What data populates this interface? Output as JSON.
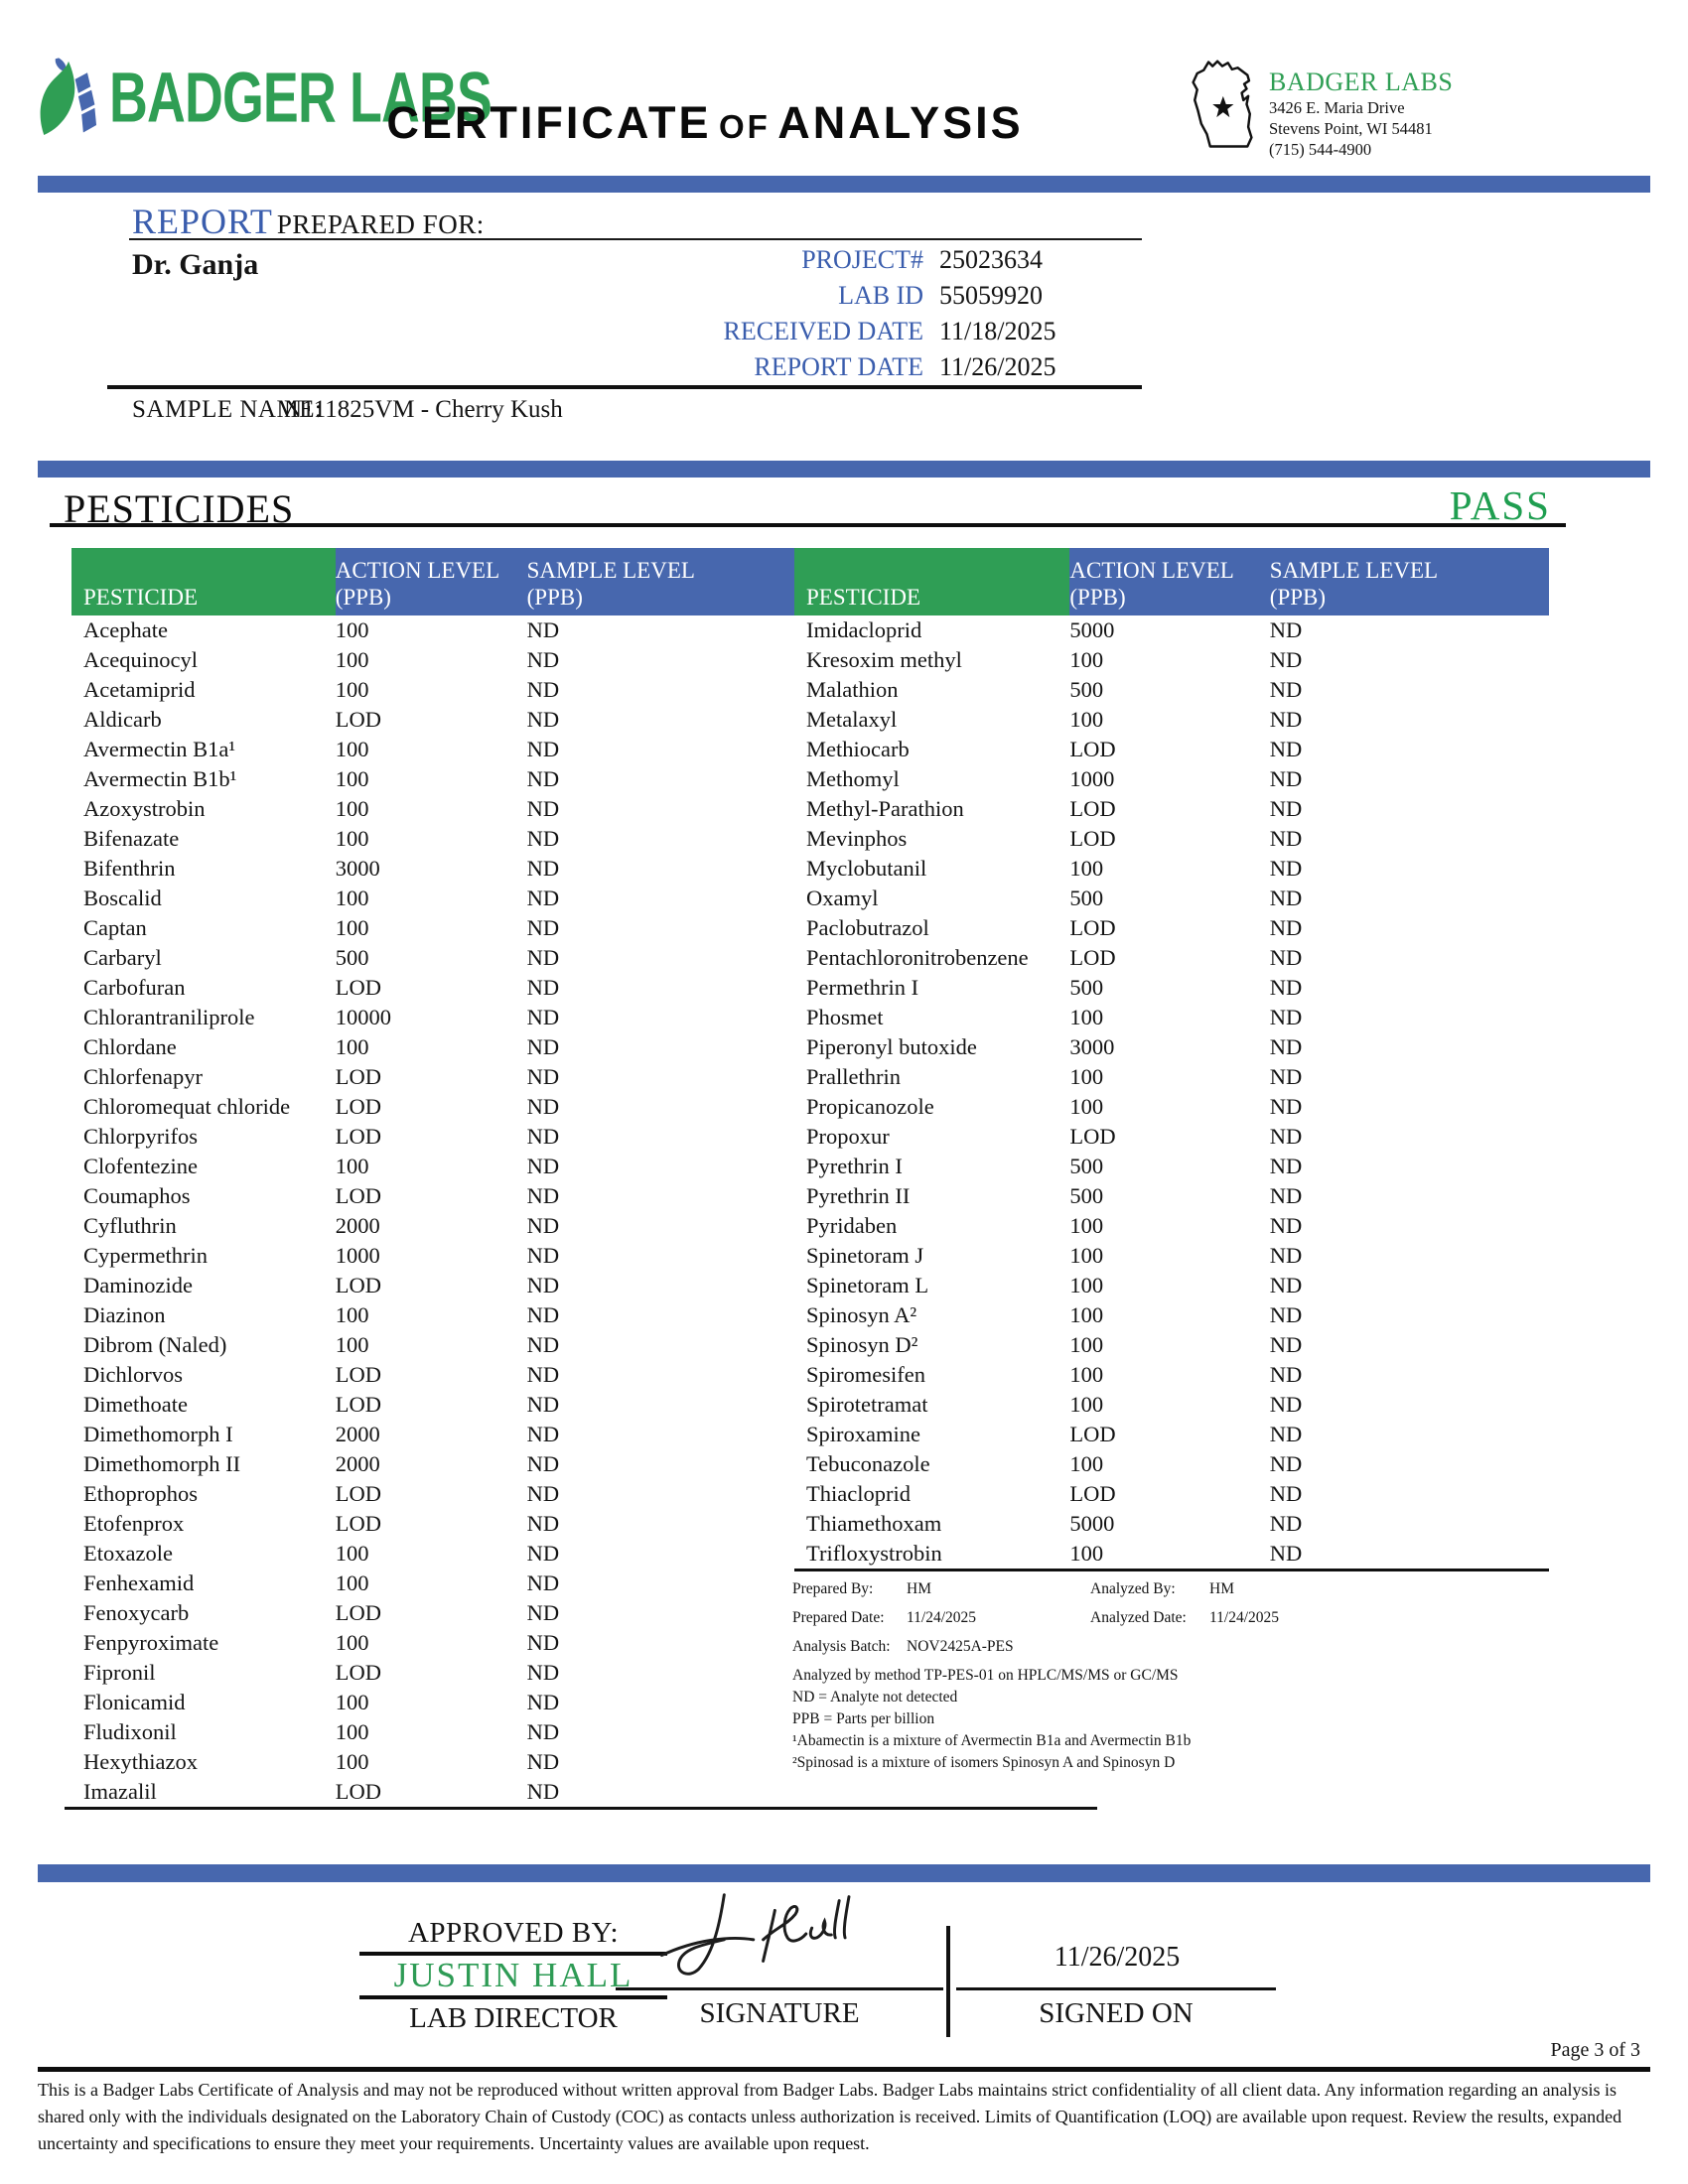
{
  "header": {
    "logo_text": "BADGER LABS",
    "title": {
      "word1": "CERTIFICATE",
      "word2": "OF",
      "word3": "ANALYSIS"
    },
    "lab_info": {
      "name": "BADGER LABS",
      "address_line1": "3426 E. Maria Drive",
      "address_line2": "Stevens Point, WI 54481",
      "phone": "(715) 544-4900"
    }
  },
  "report": {
    "report_label": "REPORT",
    "prepared_for_label": "PREPARED FOR:",
    "client": "Dr. Ganja",
    "fields": [
      {
        "label": "PROJECT#",
        "value": "25023634"
      },
      {
        "label": "LAB ID",
        "value": "55059920"
      },
      {
        "label": "RECEIVED DATE",
        "value": "11/18/2025"
      },
      {
        "label": "REPORT DATE",
        "value": "11/26/2025"
      }
    ],
    "sample_name_label": "SAMPLE NAME:",
    "sample_name": "N111825VM - Cherry Kush"
  },
  "section": {
    "title": "PESTICIDES",
    "result": "PASS"
  },
  "table": {
    "headers": {
      "pesticide": "PESTICIDE",
      "action": "ACTION LEVEL",
      "sample": "SAMPLE LEVEL",
      "unit": "(PPB)"
    },
    "left_rows": [
      {
        "name": "Acephate",
        "action": "100",
        "sample": "ND"
      },
      {
        "name": "Acequinocyl",
        "action": "100",
        "sample": "ND"
      },
      {
        "name": "Acetamiprid",
        "action": "100",
        "sample": "ND"
      },
      {
        "name": "Aldicarb",
        "action": "LOD",
        "sample": "ND"
      },
      {
        "name": "Avermectin B1a¹",
        "action": "100",
        "sample": "ND"
      },
      {
        "name": "Avermectin B1b¹",
        "action": "100",
        "sample": "ND"
      },
      {
        "name": "Azoxystrobin",
        "action": "100",
        "sample": "ND"
      },
      {
        "name": "Bifenazate",
        "action": "100",
        "sample": "ND"
      },
      {
        "name": "Bifenthrin",
        "action": "3000",
        "sample": "ND"
      },
      {
        "name": "Boscalid",
        "action": "100",
        "sample": "ND"
      },
      {
        "name": "Captan",
        "action": "100",
        "sample": "ND"
      },
      {
        "name": "Carbaryl",
        "action": "500",
        "sample": "ND"
      },
      {
        "name": "Carbofuran",
        "action": "LOD",
        "sample": "ND"
      },
      {
        "name": "Chlorantraniliprole",
        "action": "10000",
        "sample": "ND"
      },
      {
        "name": "Chlordane",
        "action": "100",
        "sample": "ND"
      },
      {
        "name": "Chlorfenapyr",
        "action": "LOD",
        "sample": "ND"
      },
      {
        "name": "Chloromequat chloride",
        "action": "LOD",
        "sample": "ND"
      },
      {
        "name": "Chlorpyrifos",
        "action": "LOD",
        "sample": "ND"
      },
      {
        "name": "Clofentezine",
        "action": "100",
        "sample": "ND"
      },
      {
        "name": "Coumaphos",
        "action": "LOD",
        "sample": "ND"
      },
      {
        "name": "Cyfluthrin",
        "action": "2000",
        "sample": "ND"
      },
      {
        "name": "Cypermethrin",
        "action": "1000",
        "sample": "ND"
      },
      {
        "name": "Daminozide",
        "action": "LOD",
        "sample": "ND"
      },
      {
        "name": "Diazinon",
        "action": "100",
        "sample": "ND"
      },
      {
        "name": "Dibrom (Naled)",
        "action": "100",
        "sample": "ND"
      },
      {
        "name": "Dichlorvos",
        "action": "LOD",
        "sample": "ND"
      },
      {
        "name": "Dimethoate",
        "action": "LOD",
        "sample": "ND"
      },
      {
        "name": "Dimethomorph I",
        "action": "2000",
        "sample": "ND"
      },
      {
        "name": "Dimethomorph II",
        "action": "2000",
        "sample": "ND"
      },
      {
        "name": "Ethoprophos",
        "action": "LOD",
        "sample": "ND"
      },
      {
        "name": "Etofenprox",
        "action": "LOD",
        "sample": "ND"
      },
      {
        "name": "Etoxazole",
        "action": "100",
        "sample": "ND"
      },
      {
        "name": "Fenhexamid",
        "action": "100",
        "sample": "ND"
      },
      {
        "name": "Fenoxycarb",
        "action": "LOD",
        "sample": "ND"
      },
      {
        "name": "Fenpyroximate",
        "action": "100",
        "sample": "ND"
      },
      {
        "name": "Fipronil",
        "action": "LOD",
        "sample": "ND"
      },
      {
        "name": "Flonicamid",
        "action": "100",
        "sample": "ND"
      },
      {
        "name": "Fludixonil",
        "action": "100",
        "sample": "ND"
      },
      {
        "name": "Hexythiazox",
        "action": "100",
        "sample": "ND"
      },
      {
        "name": "Imazalil",
        "action": "LOD",
        "sample": "ND"
      }
    ],
    "right_rows": [
      {
        "name": "Imidacloprid",
        "action": "5000",
        "sample": "ND"
      },
      {
        "name": "Kresoxim methyl",
        "action": "100",
        "sample": "ND"
      },
      {
        "name": "Malathion",
        "action": "500",
        "sample": "ND"
      },
      {
        "name": "Metalaxyl",
        "action": "100",
        "sample": "ND"
      },
      {
        "name": "Methiocarb",
        "action": "LOD",
        "sample": "ND"
      },
      {
        "name": "Methomyl",
        "action": "1000",
        "sample": "ND"
      },
      {
        "name": "Methyl-Parathion",
        "action": "LOD",
        "sample": "ND"
      },
      {
        "name": "Mevinphos",
        "action": "LOD",
        "sample": "ND"
      },
      {
        "name": "Myclobutanil",
        "action": "100",
        "sample": "ND"
      },
      {
        "name": "Oxamyl",
        "action": "500",
        "sample": "ND"
      },
      {
        "name": "Paclobutrazol",
        "action": "LOD",
        "sample": "ND"
      },
      {
        "name": "Pentachloronitrobenzene",
        "action": "LOD",
        "sample": "ND"
      },
      {
        "name": "Permethrin I",
        "action": "500",
        "sample": "ND"
      },
      {
        "name": "Phosmet",
        "action": "100",
        "sample": "ND"
      },
      {
        "name": "Piperonyl butoxide",
        "action": "3000",
        "sample": "ND"
      },
      {
        "name": "Prallethrin",
        "action": "100",
        "sample": "ND"
      },
      {
        "name": "Propicanozole",
        "action": "100",
        "sample": "ND"
      },
      {
        "name": "Propoxur",
        "action": "LOD",
        "sample": "ND"
      },
      {
        "name": "Pyrethrin I",
        "action": "500",
        "sample": "ND"
      },
      {
        "name": "Pyrethrin II",
        "action": "500",
        "sample": "ND"
      },
      {
        "name": "Pyridaben",
        "action": "100",
        "sample": "ND"
      },
      {
        "name": "Spinetoram J",
        "action": "100",
        "sample": "ND"
      },
      {
        "name": "Spinetoram L",
        "action": "100",
        "sample": "ND"
      },
      {
        "name": "Spinosyn A²",
        "action": "100",
        "sample": "ND"
      },
      {
        "name": "Spinosyn D²",
        "action": "100",
        "sample": "ND"
      },
      {
        "name": "Spiromesifen",
        "action": "100",
        "sample": "ND"
      },
      {
        "name": "Spirotetramat",
        "action": "100",
        "sample": "ND"
      },
      {
        "name": "Spiroxamine",
        "action": "LOD",
        "sample": "ND"
      },
      {
        "name": "Tebuconazole",
        "action": "100",
        "sample": "ND"
      },
      {
        "name": "Thiacloprid",
        "action": "LOD",
        "sample": "ND"
      },
      {
        "name": "Thiamethoxam",
        "action": "5000",
        "sample": "ND"
      },
      {
        "name": "Trifloxystrobin",
        "action": "100",
        "sample": "ND"
      }
    ]
  },
  "analysis_meta": {
    "rows": [
      {
        "l1": "Prepared By:",
        "v1": "HM",
        "l2": "Analyzed By:",
        "v2": "HM"
      },
      {
        "l1": "Prepared Date:",
        "v1": "11/24/2025",
        "l2": "Analyzed Date:",
        "v2": "11/24/2025"
      },
      {
        "l1": "Analysis Batch:",
        "v1": "NOV2425A-PES",
        "l2": "",
        "v2": ""
      }
    ],
    "notes": [
      "Analyzed by method TP-PES-01 on HPLC/MS/MS or GC/MS",
      "ND = Analyte not detected",
      "PPB = Parts per billion",
      "¹Abamectin is a mixture of Avermectin B1a and Avermectin B1b",
      "²Spinosad is a mixture of isomers Spinosyn A and Spinosyn D"
    ]
  },
  "approval": {
    "approved_by_label": "APPROVED BY:",
    "approver": "JUSTIN HALL",
    "approver_title": "LAB DIRECTOR",
    "signature_label": "SIGNATURE",
    "signed_on_label": "SIGNED ON",
    "signed_date": "11/26/2025"
  },
  "footer": {
    "page": "Page 3 of 3",
    "disclaimer": "This is a Badger Labs Certificate of Analysis and may not be reproduced without written approval from Badger Labs. Badger Labs maintains strict confidentiality of all client data. Any information regarding an analysis is shared only with the individuals designated on the Laboratory Chain of Custody (COC) as contacts unless authorization is received. Limits of Quantification (LOQ) are available upon request. Review the results, expanded uncertainty and specifications to ensure they meet your requirements. Uncertainty values are available upon request."
  },
  "colors": {
    "green": "#2f9e54",
    "blue": "#4767ae",
    "blue_text": "#3a5dad",
    "pass_green": "#1f9e50"
  }
}
